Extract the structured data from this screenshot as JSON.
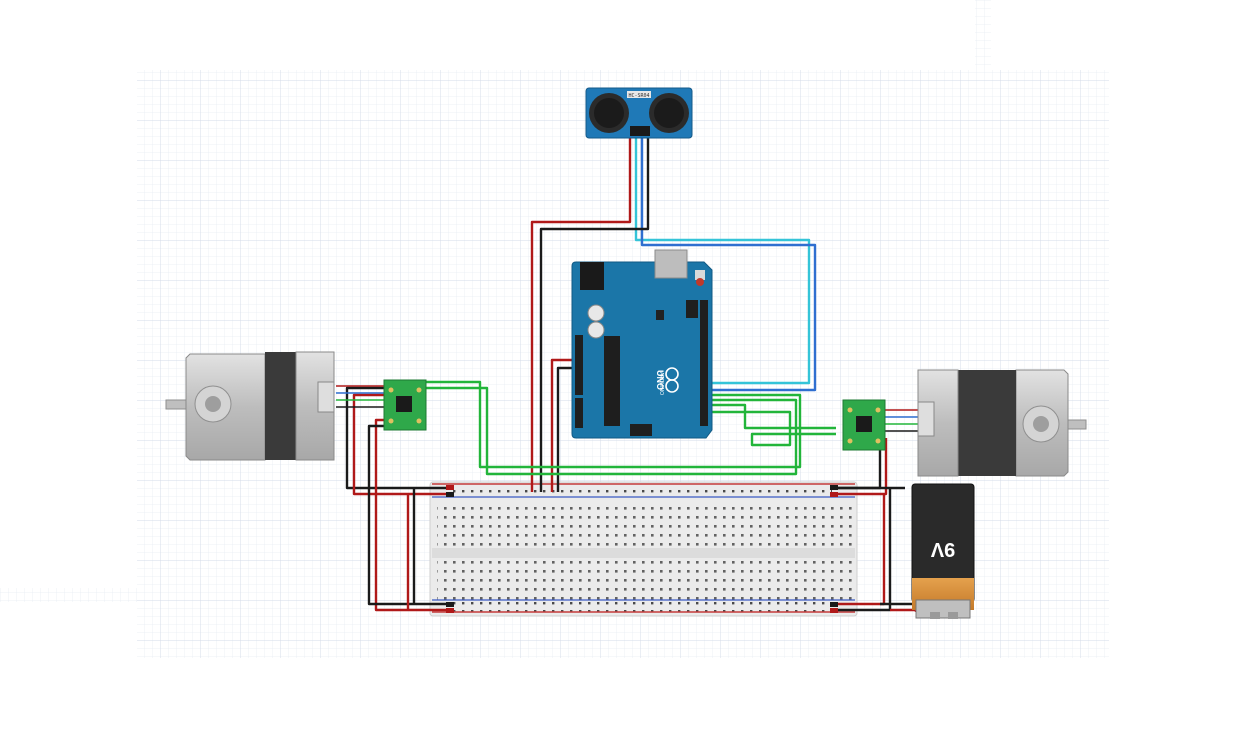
{
  "sensor": {
    "label": "HC-SR04",
    "part": "ultrasonic-sensor"
  },
  "arduino": {
    "logo_text": "UNO",
    "brand": "ARDUINO"
  },
  "battery": {
    "label": "9V"
  },
  "colors": {
    "grid_minor": "#e6ebf3",
    "grid_major": "#d3dbe8",
    "wire_red": "#b01919",
    "wire_black": "#1a1a1a",
    "wire_green": "#22b53a",
    "wire_cyan": "#34c4d8",
    "wire_blue": "#2f6fd0",
    "board_blue": "#1b76a8",
    "driver_green": "#2fa84a",
    "motor_silver": "#c9c9c9",
    "breadboard": "#ebebeb",
    "battery_body": "#2a2a2a",
    "battery_copper": "#d7913f"
  }
}
